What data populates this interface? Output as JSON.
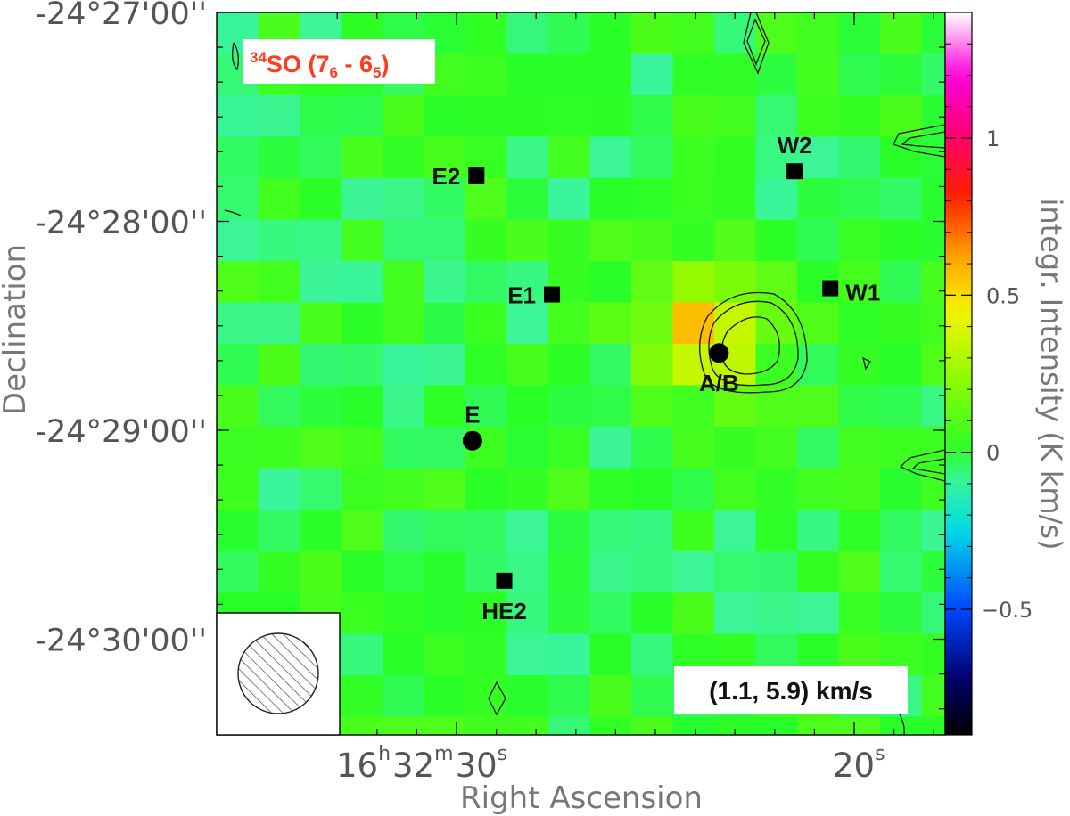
{
  "chart_data": {
    "type": "heatmap",
    "title": "",
    "molecule_label": {
      "isotope": "34",
      "species": "SO",
      "transition_upper": "7",
      "transition_upper_sub": "6",
      "separator": " - ",
      "transition_lower": "6",
      "transition_lower_sub": "5",
      "color": "#ff3b1f"
    },
    "velocity_range_label": "(1.1, 5.9) km/s",
    "xlabel": "Right Ascension",
    "ylabel": "Declination",
    "colorbar_label": "integr. Intensity (K km/s)",
    "colorbar_range": [
      -0.9,
      1.4
    ],
    "colorbar_ticks": [
      {
        "value": 1,
        "label": "1"
      },
      {
        "value": 0.5,
        "label": "0.5"
      },
      {
        "value": 0,
        "label": "0"
      },
      {
        "value": -0.5,
        "label": "−0.5"
      }
    ],
    "dec_ticks": [
      {
        "text": "-24°27'00''",
        "dec_arcmin": 0
      },
      {
        "text": "-24°28'00''",
        "dec_arcmin": 1
      },
      {
        "text": "-24°29'00''",
        "dec_arcmin": 2
      },
      {
        "text": "-24°30'00''",
        "dec_arcmin": 3
      }
    ],
    "ra_ticks": [
      {
        "hours": "16",
        "h": "h",
        "minutes": "32",
        "m": "m",
        "seconds": "30",
        "s": "s",
        "ra_sec": 30
      },
      {
        "seconds": "20",
        "s": "s",
        "ra_sec": 20
      }
    ],
    "sources": [
      {
        "name": "E2",
        "marker": "square",
        "ra_sec": 29.5,
        "dec_arcmin": 0.78,
        "label_side": "left"
      },
      {
        "name": "W2",
        "marker": "square",
        "ra_sec": 21.5,
        "dec_arcmin": 0.76,
        "label_side": "top"
      },
      {
        "name": "E1",
        "marker": "square",
        "ra_sec": 27.6,
        "dec_arcmin": 1.35,
        "label_side": "left"
      },
      {
        "name": "W1",
        "marker": "square",
        "ra_sec": 20.6,
        "dec_arcmin": 1.32,
        "label_side": "right"
      },
      {
        "name": "A/B",
        "marker": "circle",
        "ra_sec": 23.4,
        "dec_arcmin": 1.63,
        "label_side": "bottom"
      },
      {
        "name": "E",
        "marker": "circle",
        "ra_sec": 29.6,
        "dec_arcmin": 2.05,
        "label_side": "top"
      },
      {
        "name": "HE2",
        "marker": "square",
        "ra_sec": 28.8,
        "dec_arcmin": 2.72,
        "label_side": "bottom"
      }
    ],
    "emission_peak": {
      "ra_sec": 23.7,
      "dec_arcmin": 1.55,
      "peak_value": 0.55
    },
    "beam": {
      "shape": "circle",
      "hatched": true,
      "location": "bottom-left"
    },
    "grid": false
  }
}
